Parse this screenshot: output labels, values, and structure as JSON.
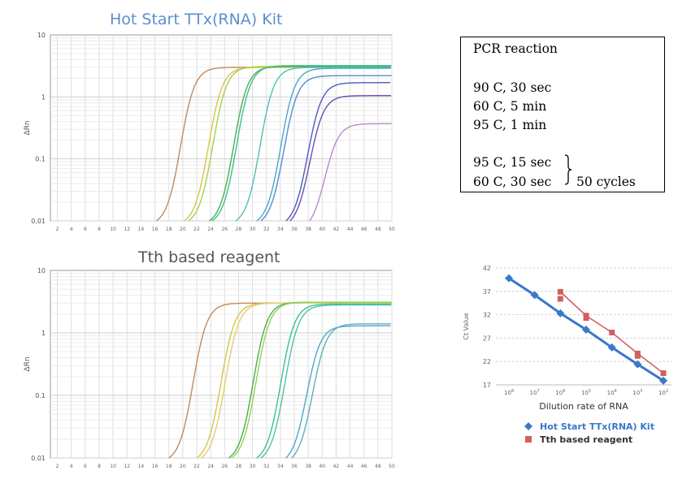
{
  "charts": {
    "top": {
      "title": "Hot Start TTx(RNA) Kit",
      "ylabel": "ΔRn",
      "y_ticks": [
        "10",
        "1",
        "0.1",
        "0.01"
      ],
      "x_ticks": [
        "2",
        "4",
        "6",
        "8",
        "10",
        "12",
        "14",
        "16",
        "18",
        "20",
        "22",
        "24",
        "26",
        "28",
        "30",
        "32",
        "34",
        "36",
        "38",
        "40",
        "42",
        "44",
        "46",
        "48",
        "50"
      ]
    },
    "middle": {
      "title": "Tth based reagent",
      "ylabel": "ΔRn",
      "y_ticks": [
        "10",
        "1",
        "0.1",
        "0.01"
      ],
      "x_ticks": [
        "2",
        "4",
        "6",
        "8",
        "10",
        "12",
        "14",
        "16",
        "18",
        "20",
        "22",
        "24",
        "26",
        "28",
        "30",
        "32",
        "34",
        "36",
        "38",
        "40",
        "42",
        "44",
        "46",
        "48",
        "50"
      ]
    },
    "ct": {
      "ylabel": "Ct Value",
      "xlabel": "Dilution rate of RNA",
      "y_ticks": [
        "42",
        "37",
        "32",
        "27",
        "22",
        "17"
      ],
      "x_ticks": [
        {
          "base": "10",
          "exp": "8"
        },
        {
          "base": "10",
          "exp": "7"
        },
        {
          "base": "10",
          "exp": "6"
        },
        {
          "base": "10",
          "exp": "5"
        },
        {
          "base": "10",
          "exp": "4"
        },
        {
          "base": "10",
          "exp": "3"
        },
        {
          "base": "10",
          "exp": "2"
        }
      ],
      "legend": [
        "Hot Start TTx(RNA) Kit",
        "Tth based reagent"
      ]
    }
  },
  "pcr": {
    "title": "PCR reaction",
    "steps": [
      "90 C, 30 sec",
      "60 C, 5 min",
      "95 C, 1 min"
    ],
    "cycle_steps": [
      "95 C, 15 sec",
      "60 C, 30 sec"
    ],
    "cycles_label": "50 cycles"
  },
  "colors": {
    "grid": "#dcdcdc",
    "axis": "#888888",
    "series_blue": "#3a78c9",
    "series_red": "#d0605e"
  },
  "chart_data": [
    {
      "type": "line",
      "title": "Hot Start TTx(RNA) Kit",
      "xlabel": "",
      "ylabel": "ΔRn",
      "xlim": [
        1,
        50
      ],
      "ylim": [
        0.01,
        10
      ],
      "yscale": "log",
      "grid": true,
      "series": [
        {
          "color": "#c48a5a",
          "x_start": 16.2,
          "plateau": 3.0
        },
        {
          "color": "#d7c54a",
          "x_start": 20.2,
          "plateau": 3.0
        },
        {
          "color": "#a8d04a",
          "x_start": 20.8,
          "plateau": 3.1
        },
        {
          "color": "#4cae4c",
          "x_start": 23.8,
          "plateau": 3.1
        },
        {
          "color": "#3fbf8c",
          "x_start": 24.2,
          "plateau": 3.2
        },
        {
          "color": "#4cc1b4",
          "x_start": 27.6,
          "plateau": 3.0
        },
        {
          "color": "#4aa8c9",
          "x_start": 30.6,
          "plateau": 2.9
        },
        {
          "color": "#4f8fcf",
          "x_start": 31.2,
          "plateau": 2.2
        },
        {
          "color": "#4b5bbf",
          "x_start": 34.8,
          "plateau": 1.7
        },
        {
          "color": "#6a4fb0",
          "x_start": 35.4,
          "plateau": 1.05
        },
        {
          "color": "#b58ad3",
          "x_start": 38.2,
          "plateau": 0.37
        }
      ]
    },
    {
      "type": "line",
      "title": "Tth based reagent",
      "xlabel": "",
      "ylabel": "ΔRn",
      "xlim": [
        1,
        50
      ],
      "ylim": [
        0.01,
        10
      ],
      "yscale": "log",
      "grid": true,
      "series": [
        {
          "color": "#c48a5a",
          "x_start": 18.0,
          "plateau": 3.0
        },
        {
          "color": "#d7c54a",
          "x_start": 22.0,
          "plateau": 3.0
        },
        {
          "color": "#e3d06a",
          "x_start": 22.6,
          "plateau": 3.0
        },
        {
          "color": "#4cae4c",
          "x_start": 26.6,
          "plateau": 3.1
        },
        {
          "color": "#8fd45a",
          "x_start": 27.0,
          "plateau": 3.1
        },
        {
          "color": "#3fbf8c",
          "x_start": 30.6,
          "plateau": 2.9
        },
        {
          "color": "#4cc1b4",
          "x_start": 31.2,
          "plateau": 2.8
        },
        {
          "color": "#4aa8c9",
          "x_start": 34.8,
          "plateau": 1.3
        },
        {
          "color": "#5fb0b8",
          "x_start": 35.6,
          "plateau": 1.4
        }
      ]
    },
    {
      "type": "line",
      "title": "",
      "xlabel": "Dilution rate of RNA",
      "ylabel": "Ct Value",
      "categories": [
        "10^8",
        "10^7",
        "10^6",
        "10^5",
        "10^4",
        "10^3",
        "10^2"
      ],
      "ylim": [
        17,
        42
      ],
      "grid": true,
      "legend_position": "bottom",
      "series": [
        {
          "name": "Hot Start TTx(RNA) Kit",
          "color": "#3a78c9",
          "marker": "diamond",
          "values": [
            39.8,
            36.2,
            32.3,
            28.8,
            25.0,
            21.4,
            17.9
          ]
        },
        {
          "name": "Tth based reagent",
          "color": "#d0605e",
          "marker": "square",
          "values": [
            null,
            null,
            36.9,
            31.8,
            28.2,
            23.7,
            19.5
          ]
        }
      ],
      "extra_points": [
        {
          "series": "Tth based reagent",
          "category": "10^6",
          "value": 35.4
        },
        {
          "series": "Tth based reagent",
          "category": "10^5",
          "value": 31.3
        },
        {
          "series": "Tth based reagent",
          "category": "10^3",
          "value": 23.2
        }
      ]
    }
  ]
}
